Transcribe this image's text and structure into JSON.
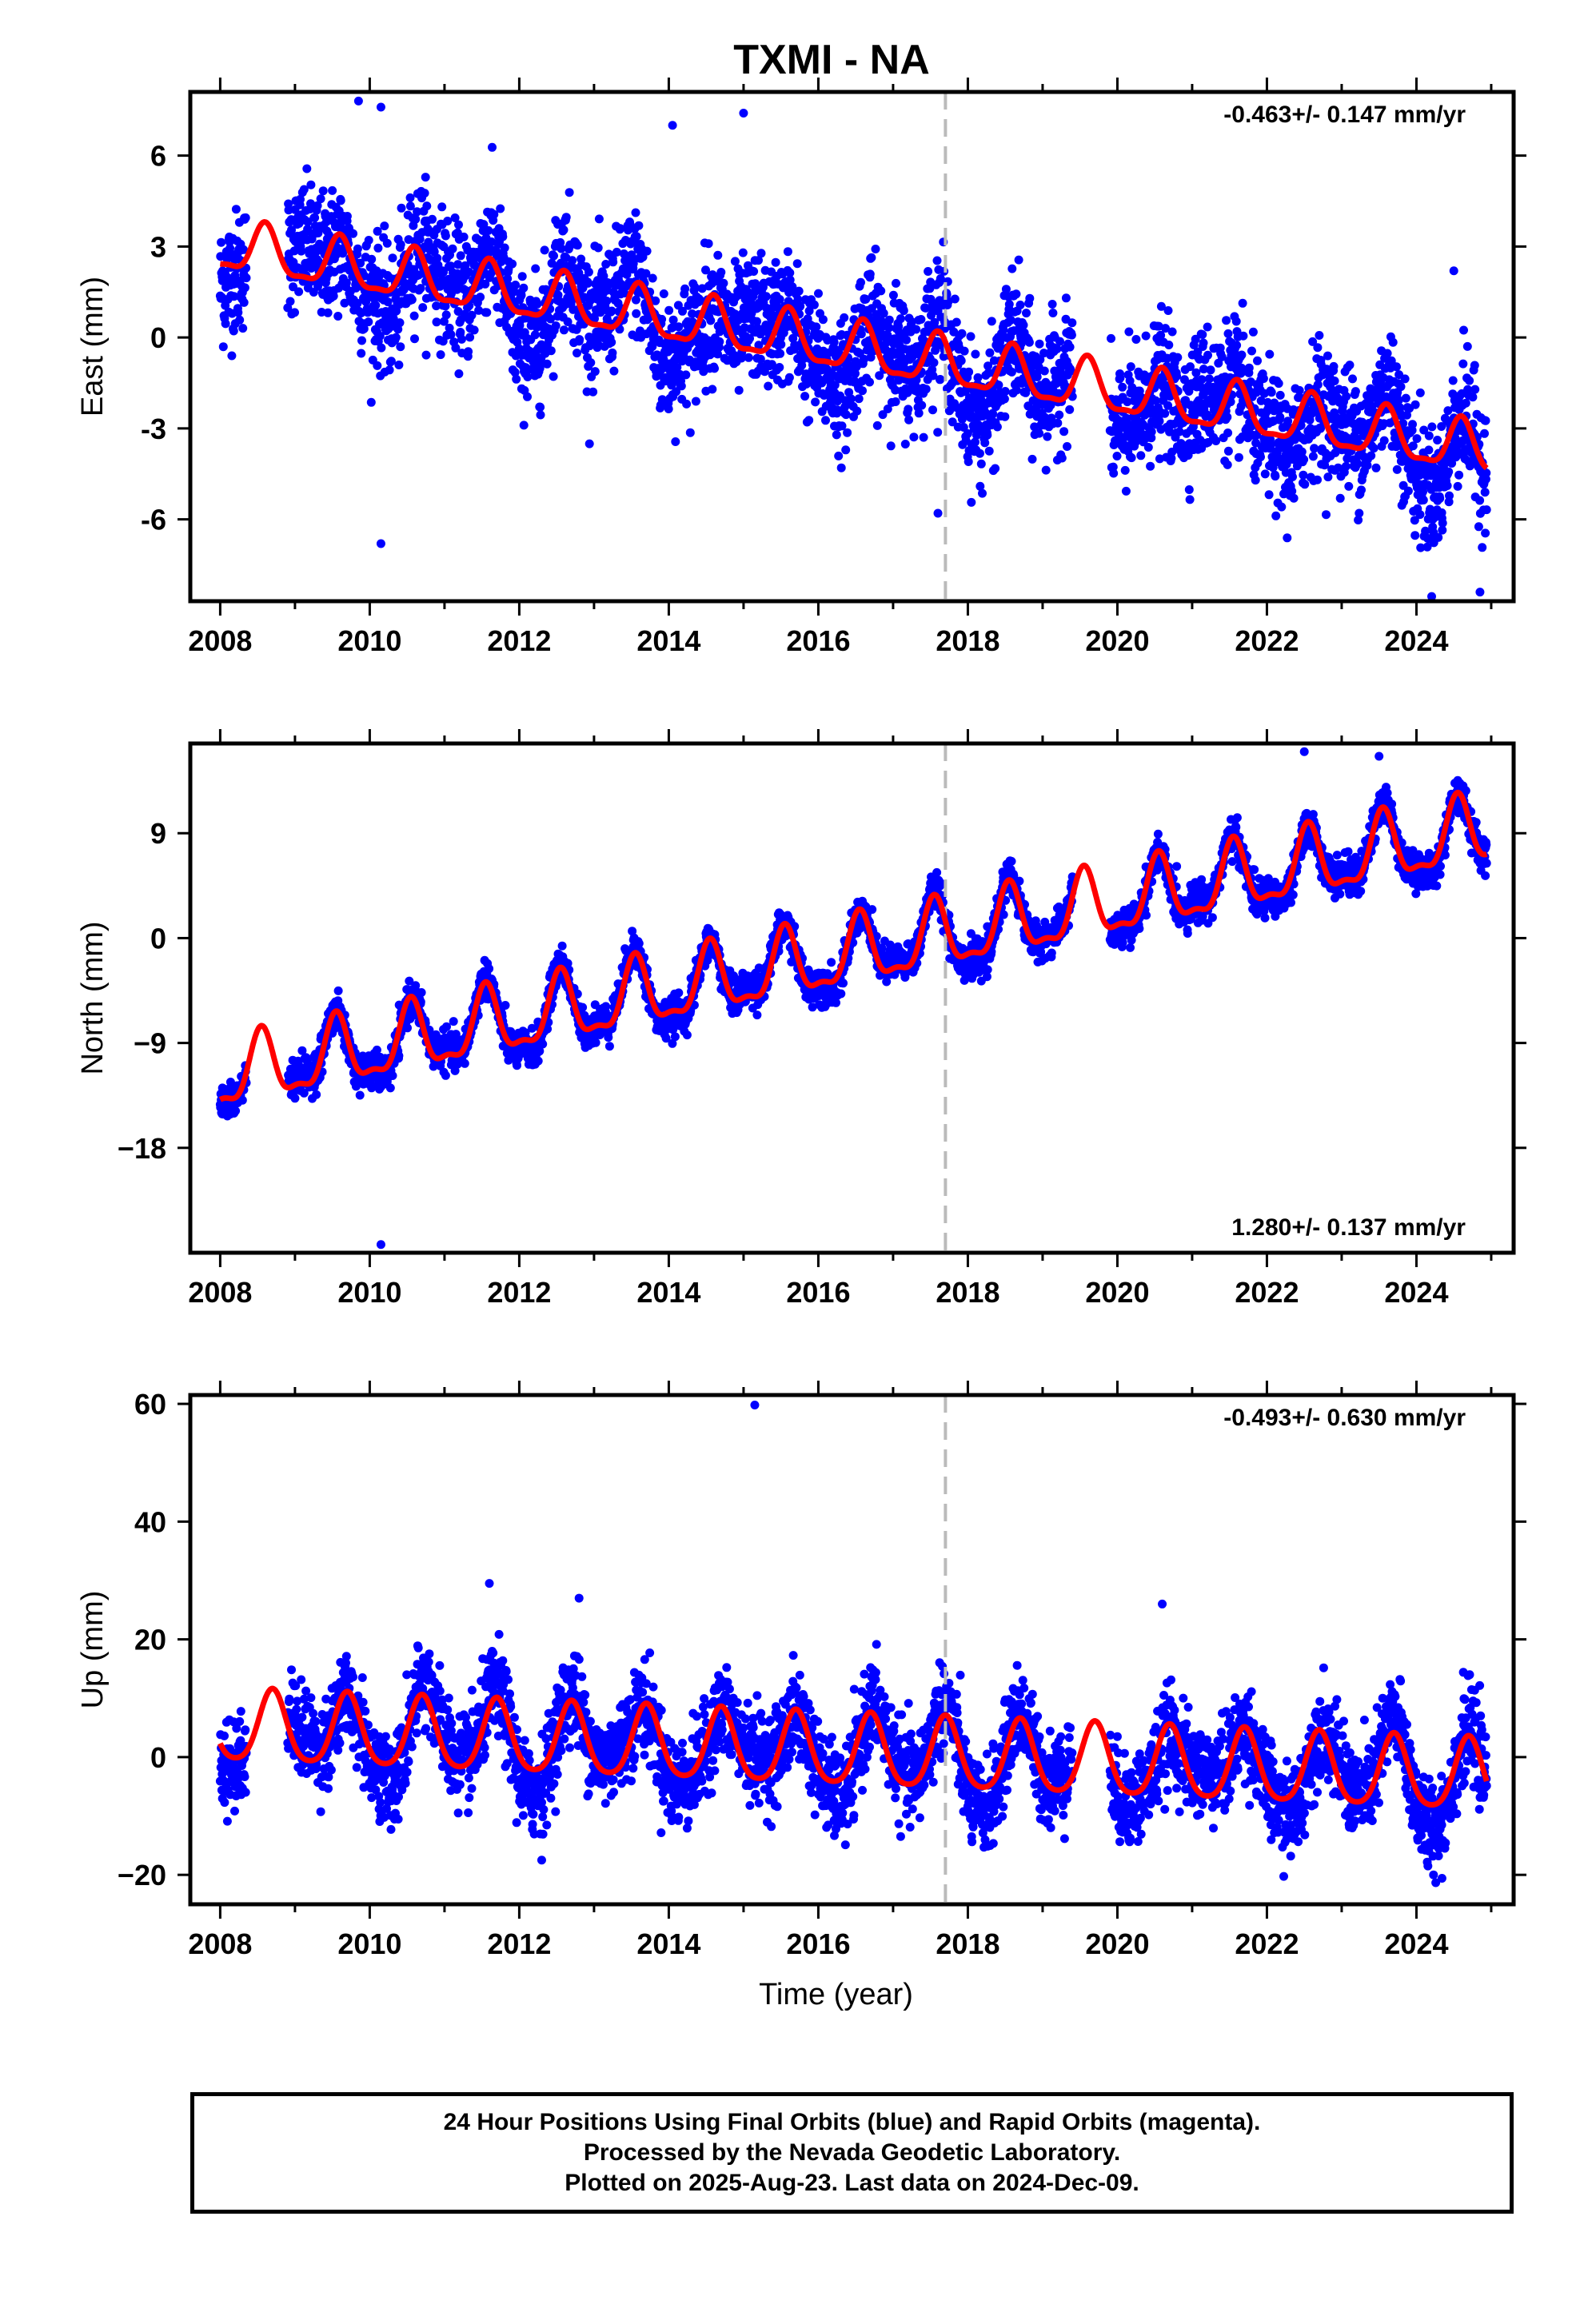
{
  "title": "TXMI - NA",
  "colors": {
    "points": "#0000ff",
    "fit": "#ff0000",
    "break_line": "#bbbbbb",
    "axes": "#000000"
  },
  "footer": {
    "line1": "24 Hour Positions Using Final Orbits (blue) and Rapid Orbits (magenta).",
    "line2": "Processed by the Nevada Geodetic Laboratory.",
    "line3": "Plotted on 2025-Aug-23. Last data on 2024-Dec-09."
  },
  "chart_data": [
    {
      "type": "scatter",
      "component": "east",
      "ylabel": "East (mm)",
      "xlabel": "",
      "rate_text": "-0.463+/- 0.147 mm/yr",
      "rate_position": "top-right",
      "xlim": [
        2007.6,
        2025.3
      ],
      "ylim": [
        -8.7,
        8.1
      ],
      "xticks": [
        2008,
        2010,
        2012,
        2014,
        2016,
        2018,
        2020,
        2022,
        2024
      ],
      "xtick_labels": [
        "2008",
        "2010",
        "2012",
        "2014",
        "2016",
        "2018",
        "2020",
        "2022",
        "2024"
      ],
      "yticks": [
        -6,
        -3,
        0,
        3,
        6
      ],
      "ytick_labels": [
        "-6",
        "-3",
        "0",
        "3",
        "6"
      ],
      "break_year": 2017.7,
      "data_range": [
        2008.0,
        2024.94
      ],
      "trend": {
        "value_2008": 3.0,
        "rate": -0.4,
        "annual_amp": 0.8,
        "annual_phase": 0.6,
        "semiannual_amp": 0.25,
        "scatter": 1.2
      },
      "outliers": [
        [
          2009.85,
          7.8
        ],
        [
          2010.15,
          7.6
        ],
        [
          2010.15,
          -6.8
        ],
        [
          2015.0,
          7.4
        ],
        [
          2014.05,
          7.0
        ],
        [
          2017.6,
          -5.8
        ],
        [
          2024.85,
          -8.4
        ],
        [
          2024.5,
          2.2
        ]
      ],
      "grid": false
    },
    {
      "type": "scatter",
      "component": "north",
      "ylabel": "North (mm)",
      "xlabel": "",
      "rate_text": "1.280+/- 0.137 mm/yr",
      "rate_position": "bottom-right",
      "xlim": [
        2007.6,
        2025.3
      ],
      "ylim": [
        -27.0,
        16.7
      ],
      "xticks": [
        2008,
        2010,
        2012,
        2014,
        2016,
        2018,
        2020,
        2022,
        2024
      ],
      "xtick_labels": [
        "2008",
        "2010",
        "2012",
        "2014",
        "2016",
        "2018",
        "2020",
        "2022",
        "2024"
      ],
      "yticks": [
        -18,
        -9,
        0,
        9
      ],
      "ytick_labels": [
        "−18",
        "−9",
        "0",
        "9"
      ],
      "break_year": 2017.7,
      "data_range": [
        2008.0,
        2024.94
      ],
      "trend": {
        "value_2008": -12.0,
        "rate": 1.25,
        "annual_amp": 2.8,
        "annual_phase": 0.55,
        "semiannual_amp": 1.0,
        "scatter": 0.9
      },
      "outliers": [
        [
          2010.15,
          -26.3
        ],
        [
          2022.5,
          16.0
        ],
        [
          2023.5,
          15.6
        ]
      ],
      "grid": false
    },
    {
      "type": "scatter",
      "component": "up",
      "ylabel": "Up (mm)",
      "xlabel": "Time (year)",
      "rate_text": "-0.493+/- 0.630 mm/yr",
      "rate_position": "top-right",
      "xlim": [
        2007.6,
        2025.3
      ],
      "ylim": [
        -25.0,
        61.5
      ],
      "xticks": [
        2008,
        2010,
        2012,
        2014,
        2016,
        2018,
        2020,
        2022,
        2024
      ],
      "xtick_labels": [
        "2008",
        "2010",
        "2012",
        "2014",
        "2016",
        "2018",
        "2020",
        "2022",
        "2024"
      ],
      "yticks": [
        -20,
        0,
        20,
        40,
        60
      ],
      "ytick_labels": [
        "−20",
        "0",
        "20",
        "40",
        "60"
      ],
      "break_year": 2017.7,
      "data_range": [
        2008.0,
        2024.94
      ],
      "trend": {
        "value_2008": 5.0,
        "rate": -0.5,
        "annual_amp": 6.0,
        "annual_phase": 0.7,
        "semiannual_amp": 1.0,
        "scatter": 4.5
      },
      "outliers": [
        [
          2015.15,
          59.8
        ],
        [
          2020.6,
          26.0
        ],
        [
          2011.6,
          29.5
        ],
        [
          2012.8,
          27.0
        ],
        [
          2012.3,
          -17.5
        ]
      ],
      "grid": false
    }
  ]
}
